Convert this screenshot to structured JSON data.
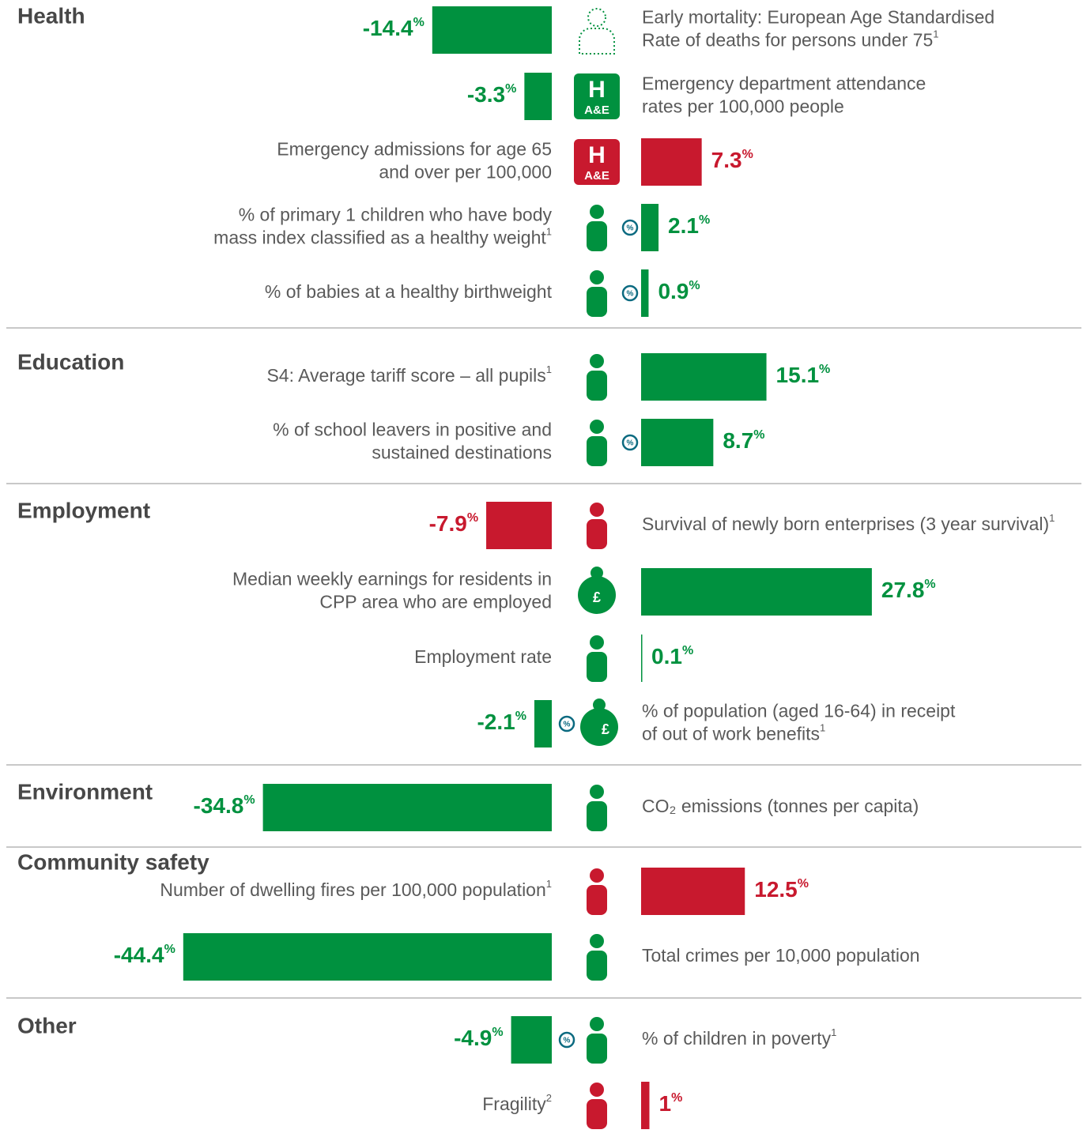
{
  "sections": [
    {
      "title": "Health",
      "items": [
        {
          "value": -14.4,
          "value_label": "-14.4%",
          "color": "#00913f",
          "label_lines": [
            "Early mortality: European Age Standardised",
            "Rate of deaths for persons under 75"
          ],
          "note": "1"
        },
        {
          "value": -3.3,
          "value_label": "-3.3%",
          "color": "#00913f",
          "label_lines": [
            "Emergency department attendance",
            "rates per 100,000 people"
          ],
          "icon_text": [
            "H",
            "A&E"
          ]
        },
        {
          "value": 7.3,
          "value_label": "7.3%",
          "color": "#c8192e",
          "label_lines": [
            "Emergency admissions for age 65",
            "and over per 100,000"
          ],
          "icon_text": [
            "H",
            "A&E"
          ]
        },
        {
          "value": 2.1,
          "value_label": "2.1%",
          "color": "#00913f",
          "label_lines": [
            "% of primary 1 children who have body",
            "mass index classified as a healthy weight"
          ],
          "note": "1",
          "badge": "%"
        },
        {
          "value": 0.9,
          "value_label": "0.9%",
          "color": "#00913f",
          "label_lines": [
            "% of babies at a healthy birthweight"
          ],
          "badge": "%"
        }
      ]
    },
    {
      "title": "Education",
      "items": [
        {
          "value": 15.1,
          "value_label": "15.1%",
          "color": "#00913f",
          "label_lines": [
            "S4: Average tariff score – all pupils"
          ],
          "note": "1"
        },
        {
          "value": 8.7,
          "value_label": "8.7%",
          "color": "#00913f",
          "label_lines": [
            "% of school leavers in positive and",
            "sustained destinations"
          ],
          "badge": "%"
        }
      ]
    },
    {
      "title": "Employment",
      "items": [
        {
          "value": -7.9,
          "value_label": "-7.9%",
          "color": "#c8192e",
          "label_lines": [
            "Survival of newly born enterprises (3 year survival)"
          ],
          "note": "1"
        },
        {
          "value": 27.8,
          "value_label": "27.8%",
          "color": "#00913f",
          "label_lines": [
            "Median weekly earnings for residents in",
            "CPP area who are employed"
          ],
          "icon_text": [
            "£"
          ]
        },
        {
          "value": 0.1,
          "value_label": "0.1%",
          "color": "#00913f",
          "label_lines": [
            "Employment rate"
          ]
        },
        {
          "value": -2.1,
          "value_label": "-2.1%",
          "color": "#00913f",
          "label_lines": [
            "% of population (aged 16-64) in receipt",
            "of out of work benefits"
          ],
          "note": "1",
          "badge": "%",
          "icon_text": [
            "£"
          ]
        }
      ]
    },
    {
      "title": "Environment",
      "items": [
        {
          "value": -34.8,
          "value_label": "-34.8%",
          "color": "#00913f",
          "label_lines": [
            "CO₂ emissions (tonnes per capita)"
          ]
        }
      ]
    },
    {
      "title": "Community safety",
      "items": [
        {
          "value": 12.5,
          "value_label": "12.5%",
          "color": "#c8192e",
          "label_lines": [
            "Number of dwelling fires per 100,000 population"
          ],
          "note": "1"
        },
        {
          "value": -44.4,
          "value_label": "-44.4%",
          "color": "#00913f",
          "label_lines": [
            "Total crimes per 10,000 population"
          ]
        }
      ]
    },
    {
      "title": "Other",
      "items": [
        {
          "value": -4.9,
          "value_label": "-4.9%",
          "color": "#00913f",
          "label_lines": [
            "% of children in poverty"
          ],
          "note": "1",
          "badge": "%"
        },
        {
          "value": 1,
          "value_label": "1%",
          "color": "#c8192e",
          "label_lines": [
            "Fragility"
          ],
          "note": "2"
        }
      ]
    }
  ]
}
